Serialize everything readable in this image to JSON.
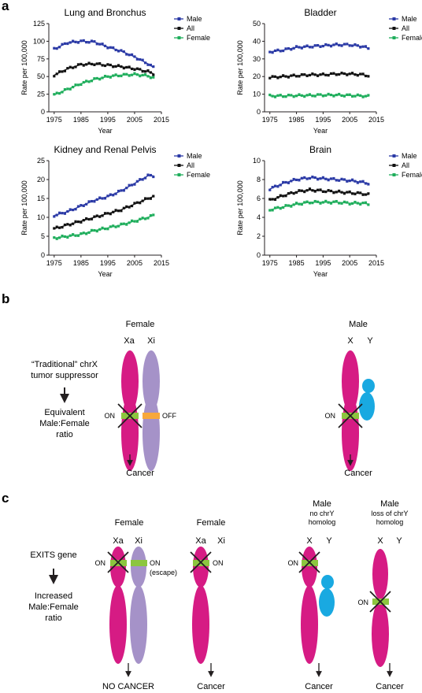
{
  "panels": {
    "a": "a",
    "b": "b",
    "c": "c"
  },
  "colors": {
    "male": "#2b3aa6",
    "all": "#111111",
    "female": "#1fae5c",
    "xa": "#d61b84",
    "xi": "#a592c8",
    "y": "#19a9e1",
    "on_band": "#8cc63f",
    "off_band": "#f7a83c"
  },
  "chart_data": [
    {
      "type": "scatter",
      "title": "Lung and Bronchus",
      "xlabel": "Year",
      "ylabel": "Rate per 100,000",
      "xlim": [
        1973,
        2015
      ],
      "ylim": [
        0,
        125
      ],
      "xticks": [
        1975,
        1985,
        1995,
        2005,
        2015
      ],
      "yticks": [
        0,
        25,
        50,
        75,
        100,
        125
      ],
      "legend": "top-right",
      "grid": false,
      "series": [
        {
          "name": "Male",
          "x": [
            1975,
            1980,
            1985,
            1990,
            1995,
            2000,
            2005,
            2010,
            2012
          ],
          "values": [
            89,
            98,
            100,
            99,
            92,
            86,
            78,
            68,
            63
          ]
        },
        {
          "name": "All",
          "x": [
            1975,
            1980,
            1985,
            1990,
            1995,
            2000,
            2005,
            2010,
            2012
          ],
          "values": [
            52,
            61,
            67,
            68,
            66,
            64,
            61,
            57,
            54
          ]
        },
        {
          "name": "Female",
          "x": [
            1975,
            1980,
            1985,
            1990,
            1995,
            2000,
            2005,
            2010,
            2012
          ],
          "values": [
            24,
            32,
            40,
            46,
            50,
            52,
            53,
            51,
            48
          ]
        }
      ]
    },
    {
      "type": "scatter",
      "title": "Bladder",
      "xlabel": "Year",
      "ylabel": "Rate per 100,000",
      "xlim": [
        1973,
        2015
      ],
      "ylim": [
        0,
        50
      ],
      "xticks": [
        1975,
        1985,
        1995,
        2005,
        2015
      ],
      "yticks": [
        0,
        10,
        20,
        30,
        40,
        50
      ],
      "legend": "top-right",
      "grid": false,
      "series": [
        {
          "name": "Male",
          "x": [
            1975,
            1980,
            1985,
            1990,
            1995,
            2000,
            2005,
            2010,
            2012
          ],
          "values": [
            34,
            35,
            36.5,
            37,
            37.5,
            38,
            38,
            37,
            36
          ]
        },
        {
          "name": "All",
          "x": [
            1975,
            1980,
            1985,
            1990,
            1995,
            2000,
            2005,
            2010,
            2012
          ],
          "values": [
            19.5,
            20,
            20.5,
            21,
            21,
            21.5,
            21.5,
            21,
            20.5
          ]
        },
        {
          "name": "Female",
          "x": [
            1975,
            1980,
            1985,
            1990,
            1995,
            2000,
            2005,
            2010,
            2012
          ],
          "values": [
            9,
            9,
            9.2,
            9.3,
            9.5,
            9.5,
            9.3,
            9,
            8.8
          ]
        }
      ]
    },
    {
      "type": "scatter",
      "title": "Kidney and Renal Pelvis",
      "xlabel": "Year",
      "ylabel": "Rate per 100,000",
      "xlim": [
        1973,
        2015
      ],
      "ylim": [
        0,
        25
      ],
      "xticks": [
        1975,
        1985,
        1995,
        2005,
        2015
      ],
      "yticks": [
        0,
        5,
        10,
        15,
        20,
        25
      ],
      "legend": "top-right",
      "grid": false,
      "series": [
        {
          "name": "Male",
          "x": [
            1975,
            1980,
            1985,
            1990,
            1995,
            2000,
            2005,
            2010,
            2012
          ],
          "values": [
            10.5,
            11.5,
            13,
            14.5,
            15.5,
            17,
            19,
            21,
            21
          ]
        },
        {
          "name": "All",
          "x": [
            1975,
            1980,
            1985,
            1990,
            1995,
            2000,
            2005,
            2010,
            2012
          ],
          "values": [
            7,
            8,
            9,
            10,
            11,
            12,
            13.5,
            15,
            15.5
          ]
        },
        {
          "name": "Female",
          "x": [
            1975,
            1980,
            1985,
            1990,
            1995,
            2000,
            2005,
            2010,
            2012
          ],
          "values": [
            4.5,
            5,
            5.5,
            6.5,
            7.2,
            8,
            9,
            10,
            10.5
          ]
        }
      ]
    },
    {
      "type": "scatter",
      "title": "Brain",
      "xlabel": "Year",
      "ylabel": "Rate per 100,000",
      "xlim": [
        1973,
        2015
      ],
      "ylim": [
        0,
        10
      ],
      "xticks": [
        1975,
        1985,
        1995,
        2005,
        2015
      ],
      "yticks": [
        0,
        2,
        4,
        6,
        8,
        10
      ],
      "legend": "top-right",
      "grid": false,
      "series": [
        {
          "name": "Male",
          "x": [
            1975,
            1980,
            1985,
            1990,
            1995,
            2000,
            2005,
            2010,
            2012
          ],
          "values": [
            7,
            7.6,
            8,
            8.2,
            8.1,
            8,
            7.9,
            7.7,
            7.6
          ]
        },
        {
          "name": "All",
          "x": [
            1975,
            1980,
            1985,
            1990,
            1995,
            2000,
            2005,
            2010,
            2012
          ],
          "values": [
            5.8,
            6.3,
            6.7,
            6.9,
            6.8,
            6.7,
            6.6,
            6.5,
            6.4
          ]
        },
        {
          "name": "Female",
          "x": [
            1975,
            1980,
            1985,
            1990,
            1995,
            2000,
            2005,
            2010,
            2012
          ],
          "values": [
            4.8,
            5.1,
            5.4,
            5.6,
            5.6,
            5.6,
            5.5,
            5.5,
            5.4
          ]
        }
      ]
    }
  ],
  "panel_b": {
    "left_text1": "“Traditional” chrX",
    "left_text2": "tumor suppressor",
    "left_text3": "Equivalent",
    "left_text4": "Male:Female",
    "left_text5": "ratio",
    "female_title": "Female",
    "male_title": "Male",
    "xa": "Xa",
    "xi": "Xi",
    "x": "X",
    "y": "Y",
    "on": "ON",
    "off": "OFF",
    "cancer_f": "Cancer",
    "cancer_m": "Cancer"
  },
  "panel_c": {
    "left_text1": "EXITS gene",
    "left_text2": "Increased",
    "left_text3": "Male:Female",
    "left_text4": "ratio",
    "f1_title": "Female",
    "f2_title": "Female",
    "m1_title": "Male",
    "m1_sub1": "no chrY",
    "m1_sub2": "homolog",
    "m2_title": "Male",
    "m2_sub1": "loss of chrY",
    "m2_sub2": "homolog",
    "xa": "Xa",
    "xi": "Xi",
    "x": "X",
    "y": "Y",
    "on": "ON",
    "on_escape": "ON",
    "escape": "(escape)",
    "out1": "NO CANCER",
    "out2": "Cancer",
    "out3": "Cancer",
    "out4": "Cancer"
  }
}
